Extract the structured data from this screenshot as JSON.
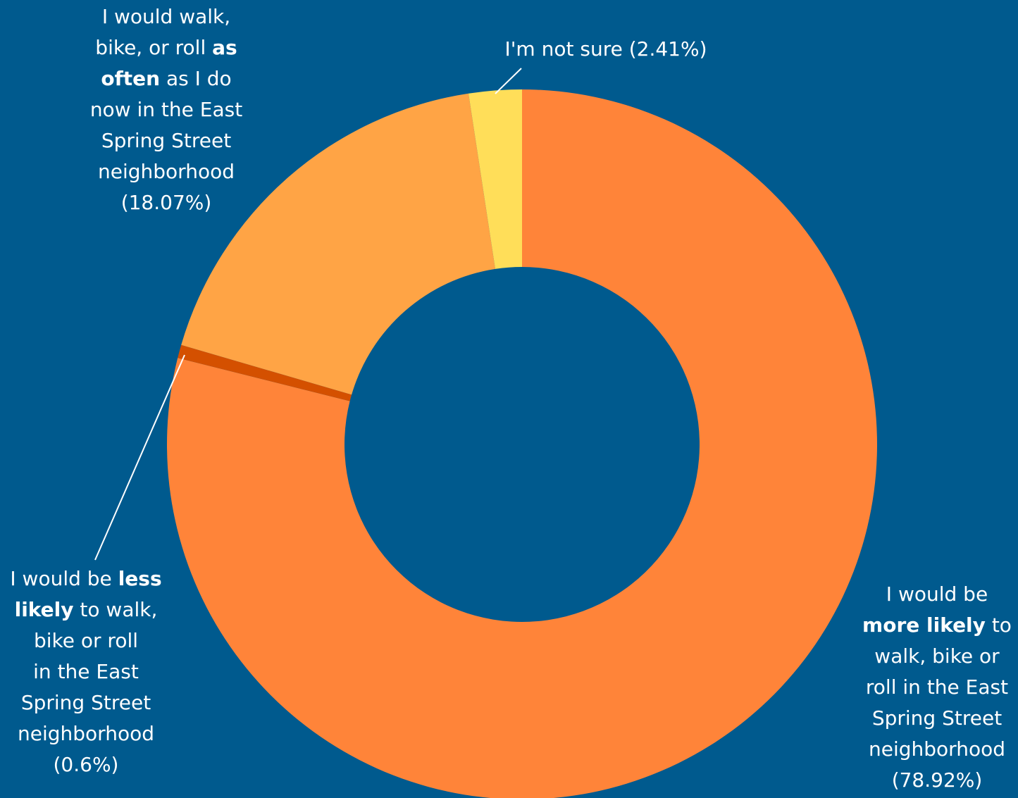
{
  "chart_data": {
    "type": "pie",
    "variant": "donut",
    "background": "#005a8e",
    "slices": [
      {
        "key": "more",
        "value": 78.92,
        "color": "#ff8439"
      },
      {
        "key": "less",
        "value": 0.6,
        "color": "#d45000"
      },
      {
        "key": "often",
        "value": 18.07,
        "color": "#ffa445"
      },
      {
        "key": "notsure",
        "value": 2.41,
        "color": "#ffde59"
      }
    ]
  },
  "labels": {
    "more": {
      "l1": "I would be",
      "l2_bold": "more likely",
      "l2_rest": " to",
      "l3": "walk, bike or",
      "l4": "roll in the East",
      "l5": "Spring Street",
      "l6": "neighborhood",
      "l7": "(78.92%)"
    },
    "less": {
      "l1_pre": "I would be ",
      "l1_bold": "less",
      "l2_bold": "likely",
      "l2_rest": " to walk,",
      "l3": "bike or roll",
      "l4": "in the East",
      "l5": "Spring Street",
      "l6": "neighborhood",
      "l7": "(0.6%)"
    },
    "often": {
      "l1": "I would walk,",
      "l2_pre": "bike, or roll ",
      "l2_bold": "as",
      "l3_bold": "often",
      "l3_rest": " as I do",
      "l4": "now in the East",
      "l5": "Spring Street",
      "l6": "neighborhood",
      "l7": "(18.07%)"
    },
    "notsure": {
      "l1": "I'm not sure (2.41%)"
    }
  }
}
